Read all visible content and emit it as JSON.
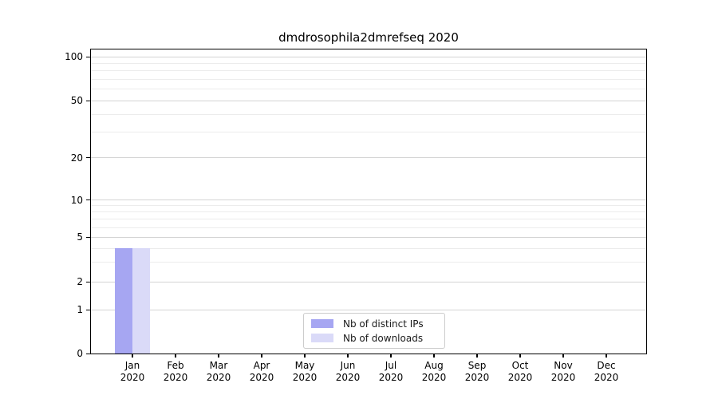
{
  "chart_data": {
    "type": "bar",
    "title": "dmdrosophila2dmrefseq 2020",
    "categories": [
      "Jan",
      "Feb",
      "Mar",
      "Apr",
      "May",
      "Jun",
      "Jul",
      "Aug",
      "Sep",
      "Oct",
      "Nov",
      "Dec"
    ],
    "x_year": "2020",
    "series": [
      {
        "name": "Nb of distinct IPs",
        "color": "#a6a6f2",
        "values": [
          4,
          0,
          0,
          0,
          0,
          0,
          0,
          0,
          0,
          0,
          0,
          0
        ]
      },
      {
        "name": "Nb of downloads",
        "color": "#dadaf8",
        "values": [
          4,
          0,
          0,
          0,
          0,
          0,
          0,
          0,
          0,
          0,
          0,
          0
        ]
      }
    ],
    "y_axis": {
      "scale": "symlog",
      "ticks": [
        0,
        1,
        2,
        5,
        10,
        20,
        50,
        100
      ],
      "tick_labels": [
        "0",
        "1",
        "2",
        "5",
        "10",
        "20",
        "50",
        "100"
      ],
      "minor_gridlines": [
        3,
        4,
        6,
        7,
        8,
        9,
        30,
        40,
        60,
        70,
        80,
        90
      ],
      "range": [
        0,
        110
      ]
    },
    "legend_position": "lower center",
    "grid": true
  },
  "colors": {
    "distinct_ips_bar": "#a6a6f2",
    "downloads_bar": "#dadaf8",
    "grid_major": "#d4d4d4",
    "grid_minor": "#ececec",
    "spine": "#000000",
    "legend_border": "#cccccc",
    "background": "#ffffff"
  }
}
